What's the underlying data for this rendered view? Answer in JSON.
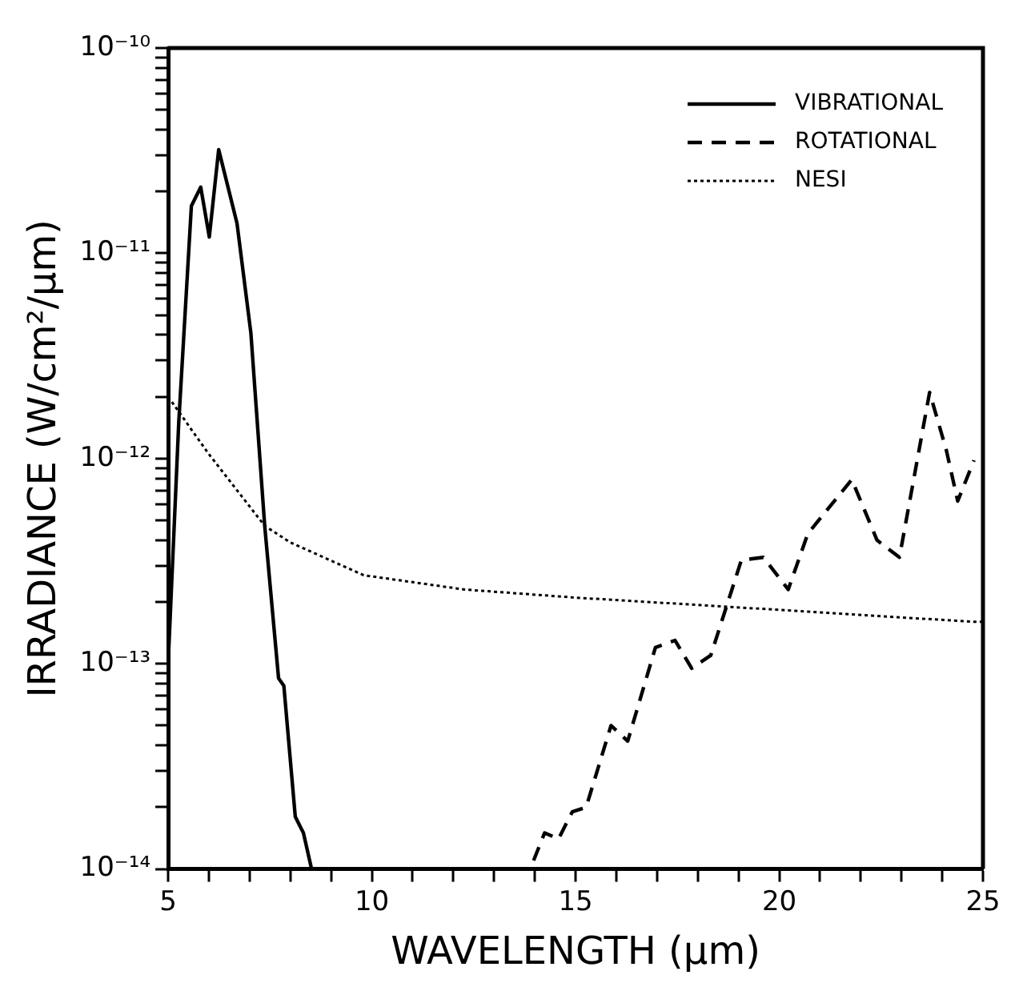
{
  "chart_data": {
    "type": "line",
    "xlabel": "WAVELENGTH (μm)",
    "ylabel": "IRRADIANCE (W/cm²/μm)",
    "log": "y",
    "grid": false,
    "legend": "top right",
    "marker": "none",
    "xlim": [
      5,
      25
    ],
    "xticks": [
      5,
      {
        "value": 6,
        "label": null
      },
      {
        "value": 7,
        "label": null
      },
      {
        "value": 8,
        "label": null
      },
      {
        "value": 9,
        "label": null
      },
      10,
      {
        "value": 11,
        "label": null
      },
      {
        "value": 12,
        "label": null
      },
      {
        "value": 13,
        "label": null
      },
      {
        "value": 14,
        "label": null
      },
      15,
      {
        "value": 16,
        "label": null
      },
      {
        "value": 17,
        "label": null
      },
      {
        "value": 18,
        "label": null
      },
      {
        "value": 19,
        "label": null
      },
      20,
      {
        "value": 21,
        "label": null
      },
      {
        "value": 22,
        "label": null
      },
      {
        "value": 23,
        "label": null
      },
      {
        "value": 24,
        "label": null
      },
      25
    ],
    "ylim": [
      1e-14,
      1e-10
    ],
    "yticks": [
      {
        "value": 1e-14,
        "label": "10⁻¹⁴"
      },
      {
        "value": 2e-14,
        "label": null
      },
      {
        "value": 3e-14,
        "label": null
      },
      {
        "value": 4e-14,
        "label": null
      },
      {
        "value": 5e-14,
        "label": null
      },
      {
        "value": 6e-14,
        "label": null
      },
      {
        "value": 7e-14,
        "label": null
      },
      {
        "value": 8e-14,
        "label": null
      },
      {
        "value": 9e-14,
        "label": null
      },
      {
        "value": 1e-13,
        "label": "10⁻¹³"
      },
      {
        "value": 2e-13,
        "label": null
      },
      {
        "value": 3e-13,
        "label": null
      },
      {
        "value": 4e-13,
        "label": null
      },
      {
        "value": 5e-13,
        "label": null
      },
      {
        "value": 6e-13,
        "label": null
      },
      {
        "value": 7e-13,
        "label": null
      },
      {
        "value": 8e-13,
        "label": null
      },
      {
        "value": 9e-13,
        "label": null
      },
      {
        "value": 1e-12,
        "label": "10⁻¹²"
      },
      {
        "value": 2e-12,
        "label": null
      },
      {
        "value": 3e-12,
        "label": null
      },
      {
        "value": 4e-12,
        "label": null
      },
      {
        "value": 5e-12,
        "label": null
      },
      {
        "value": 6e-12,
        "label": null
      },
      {
        "value": 7e-12,
        "label": null
      },
      {
        "value": 8e-12,
        "label": null
      },
      {
        "value": 9e-12,
        "label": null
      },
      {
        "value": 1e-11,
        "label": "10⁻¹¹"
      },
      {
        "value": 2e-11,
        "label": null
      },
      {
        "value": 3e-11,
        "label": null
      },
      {
        "value": 4e-11,
        "label": null
      },
      {
        "value": 5e-11,
        "label": null
      },
      {
        "value": 6e-11,
        "label": null
      },
      {
        "value": 7e-11,
        "label": null
      },
      {
        "value": 8e-11,
        "label": null
      },
      {
        "value": 9e-11,
        "label": null
      },
      {
        "value": 1e-10,
        "label": "10⁻¹⁰"
      }
    ],
    "series": [
      {
        "name": "VIBRATIONAL",
        "color": "#000000",
        "line_style": "solid",
        "x": [
          5.0,
          5.26,
          5.57,
          5.8,
          6.01,
          6.24,
          6.69,
          7.03,
          7.37,
          7.71,
          7.84,
          8.12,
          8.32,
          8.52
        ],
        "values": [
          1e-13,
          1.5e-12,
          1.7e-11,
          2.1e-11,
          1.2e-11,
          3.2e-11,
          1.4e-11,
          4.1e-12,
          4.7e-13,
          8.5e-14,
          7.8e-14,
          1.8e-14,
          1.5e-14,
          1e-14
        ]
      },
      {
        "name": "ROTATIONAL",
        "color": "#000000",
        "line_style": "dashed",
        "x": [
          13.97,
          14.24,
          14.58,
          14.92,
          15.26,
          15.87,
          16.28,
          16.96,
          17.44,
          17.85,
          18.32,
          19.07,
          19.61,
          20.22,
          20.7,
          21.78,
          22.4,
          22.95,
          23.69,
          24.1,
          24.38,
          24.78
        ],
        "values": [
          1.1e-14,
          1.5e-14,
          1.4e-14,
          1.9e-14,
          2e-14,
          5e-14,
          4.2e-14,
          1.2e-13,
          1.3e-13,
          9.5e-14,
          1.1e-13,
          3.2e-13,
          3.3e-13,
          2.3e-13,
          4.3e-13,
          7.9e-13,
          4e-13,
          3.3e-13,
          2.1e-12,
          1.1e-12,
          6.2e-13,
          9.8e-13
        ]
      },
      {
        "name": "NESI",
        "color": "#000000",
        "line_style": "dotted",
        "x": [
          5,
          6,
          7.37,
          8,
          9.8,
          12.27,
          15,
          18.66,
          24.78,
          25
        ],
        "values": [
          2e-12,
          1.05e-12,
          4.7e-13,
          3.9e-13,
          2.7e-13,
          2.3e-13,
          2.1e-13,
          1.9e-13,
          1.6e-13,
          1.6e-13
        ]
      }
    ]
  }
}
